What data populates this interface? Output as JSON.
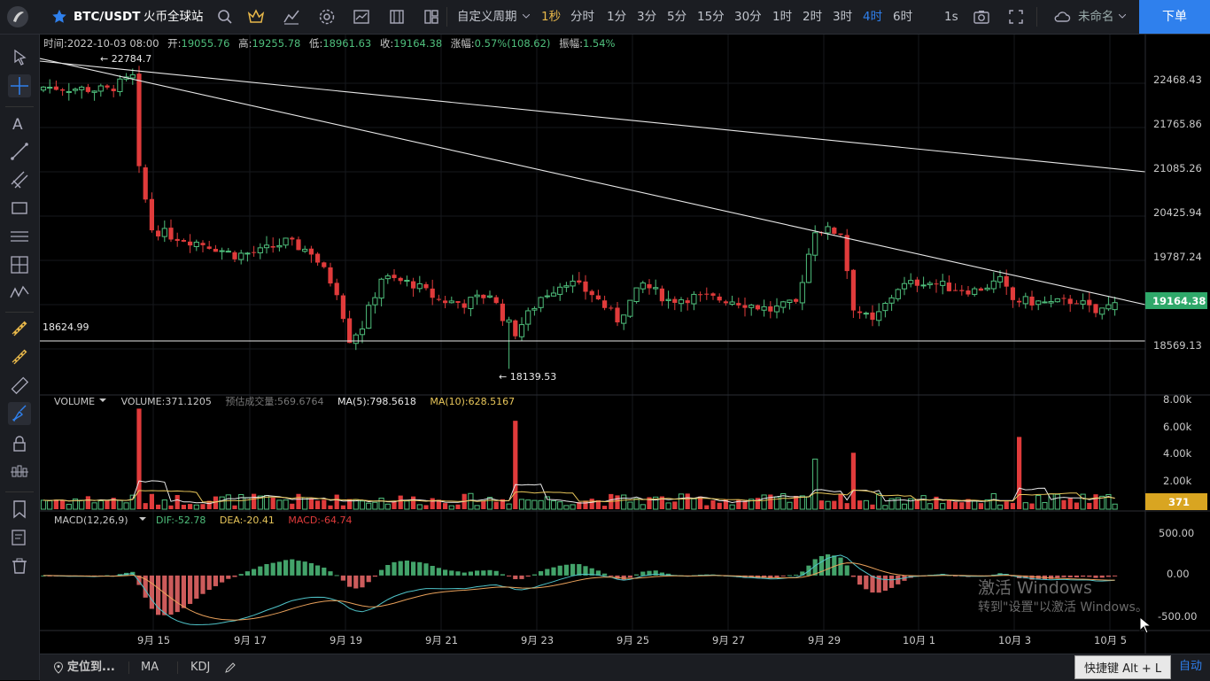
{
  "header": {
    "symbol": "BTC/USDT",
    "exchange": "火币全球站",
    "custom_period": "自定义周期",
    "periods": [
      "1秒",
      "分时",
      "1分",
      "3分",
      "5分",
      "15分",
      "30分",
      "1时",
      "2时",
      "3时",
      "4时",
      "6时"
    ],
    "active_period": "4时",
    "interval_1s": "1s",
    "layout_name": "未命名",
    "order_label": "下单"
  },
  "info_line": {
    "time_label": "时间:",
    "time": "2022-10-03 08:00",
    "open_label": "开:",
    "open": "19055.76",
    "high_label": "高:",
    "high": "19255.78",
    "low_label": "低:",
    "low": "18961.63",
    "close_label": "收:",
    "close": "19164.38",
    "change_label": "涨幅:",
    "change": "0.57%(108.62)",
    "amp_label": "振幅:",
    "amp": "1.54%"
  },
  "annotations": {
    "high_marker": "22784.7",
    "low_marker": "18139.53",
    "hline_label": "18624.99"
  },
  "volume_panel": {
    "title": "VOLUME",
    "value_text": "VOLUME:371.1205",
    "est_text": "预估成交量:569.6764",
    "ma5_text": "MA(5):798.5618",
    "ma10_text": "MA(10):628.5167",
    "last_badge": "371",
    "axis_labels": [
      "8.00k",
      "6.00k",
      "4.00k",
      "2.00k"
    ]
  },
  "macd_panel": {
    "title": "MACD(12,26,9)",
    "dif_text": "DIF:-52.78",
    "dea_text": "DEA:-20.41",
    "macd_text": "MACD:-64.74",
    "axis_labels": [
      "500.00",
      "0.00",
      "-500.00"
    ]
  },
  "price_axis": {
    "labels": [
      "22468.43",
      "21765.86",
      "21085.26",
      "20425.94",
      "19787.24",
      "18569.13"
    ],
    "last_price_badge": "19164.38"
  },
  "time_axis": {
    "labels": [
      "9月 15",
      "9月 17",
      "9月 19",
      "9月 21",
      "9月 23",
      "9月 25",
      "9月 27",
      "9月 29",
      "10月 1",
      "10月 3",
      "10月 5"
    ]
  },
  "bottom": {
    "locate_label": "定位到...",
    "indicator_ma": "MA",
    "indicator_kdj": "KDJ",
    "shortcut_tip": "快捷键 Alt + L",
    "auto_label": "自动"
  },
  "watermark": {
    "line1": "激活 Windows",
    "line2": "转到\"设置\"以激活 Windows。"
  },
  "colors": {
    "up": "#4fbf7c",
    "down": "#e03b3b",
    "accent": "#2f80ed",
    "ma5": "#e8e8e8",
    "ma10": "#e8c65a",
    "last_price_bg": "#2fa86a",
    "volume_badge_bg": "#d9a521"
  },
  "chart_data": {
    "type": "candlestick",
    "timeframe": "4h",
    "y_price_range": [
      17900,
      22900
    ],
    "volume_range": [
      0,
      8000
    ],
    "macd_range": [
      -700,
      650
    ],
    "candles": []
  }
}
